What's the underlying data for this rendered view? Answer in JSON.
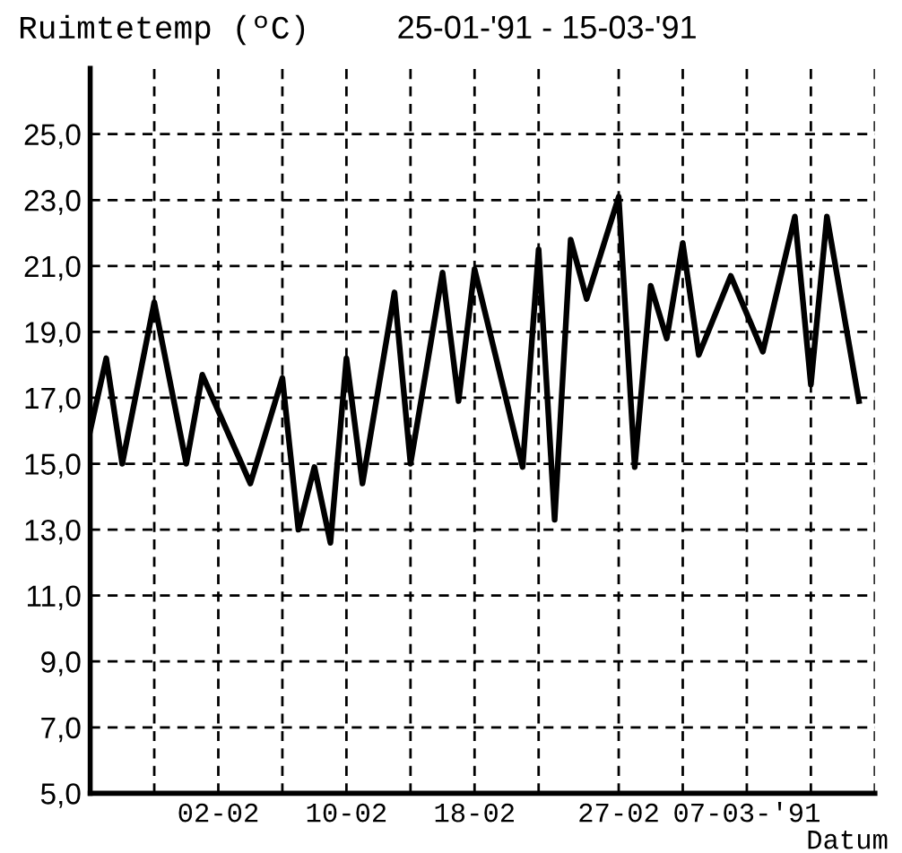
{
  "chart_data": {
    "type": "line",
    "title": "25-01-'91 - 15-03-'91",
    "ylabel": "Ruimtetemp (ºC)",
    "xlabel": "Datum",
    "x": [
      "1991-01-25",
      "1991-01-26",
      "1991-01-27",
      "1991-01-29",
      "1991-01-31",
      "1991-02-01",
      "1991-02-04",
      "1991-02-06",
      "1991-02-07",
      "1991-02-08",
      "1991-02-09",
      "1991-02-10",
      "1991-02-11",
      "1991-02-13",
      "1991-02-14",
      "1991-02-16",
      "1991-02-17",
      "1991-02-18",
      "1991-02-21",
      "1991-02-22",
      "1991-02-23",
      "1991-02-24",
      "1991-02-25",
      "1991-02-27",
      "1991-02-28",
      "1991-03-01",
      "1991-03-02",
      "1991-03-03",
      "1991-03-04",
      "1991-03-06",
      "1991-03-08",
      "1991-03-10",
      "1991-03-11",
      "1991-03-12",
      "1991-03-14"
    ],
    "series": [
      {
        "color": "#000000",
        "values": [
          16.0,
          18.2,
          15.0,
          19.9,
          15.0,
          17.7,
          14.4,
          17.6,
          13.0,
          14.9,
          12.6,
          18.2,
          14.4,
          20.2,
          15.0,
          20.8,
          16.9,
          20.9,
          14.9,
          21.5,
          13.3,
          21.8,
          20.0,
          23.1,
          14.9,
          20.4,
          18.8,
          21.7,
          18.3,
          20.7,
          18.4,
          22.5,
          17.4,
          22.5,
          16.9
        ]
      }
    ],
    "xlim": [
      "1991-01-25",
      "1991-03-15"
    ],
    "xticks": [
      {
        "value": "1991-01-29",
        "label": null
      },
      {
        "value": "1991-02-02",
        "label": "02-02"
      },
      {
        "value": "1991-02-06",
        "label": null
      },
      {
        "value": "1991-02-10",
        "label": "10-02"
      },
      {
        "value": "1991-02-14",
        "label": null
      },
      {
        "value": "1991-02-18",
        "label": "18-02"
      },
      {
        "value": "1991-02-22",
        "label": null
      },
      {
        "value": "1991-02-27",
        "label": "27-02"
      },
      {
        "value": "1991-03-03",
        "label": null
      },
      {
        "value": "1991-03-07",
        "label": "07-03-'91"
      },
      {
        "value": "1991-03-11",
        "label": null
      },
      {
        "value": "1991-03-15",
        "label": null
      }
    ],
    "ylim": [
      5,
      27
    ],
    "yticks": [
      {
        "value": 5,
        "label": "5,0"
      },
      {
        "value": 7,
        "label": "7,0"
      },
      {
        "value": 9,
        "label": "9,0"
      },
      {
        "value": 11,
        "label": "11,0"
      },
      {
        "value": 13,
        "label": "13,0"
      },
      {
        "value": 15,
        "label": "15,0"
      },
      {
        "value": 17,
        "label": "17,0"
      },
      {
        "value": 19,
        "label": "19,0"
      },
      {
        "value": 21,
        "label": "21,0"
      },
      {
        "value": 23,
        "label": "23,0"
      },
      {
        "value": 25,
        "label": "25,0"
      }
    ],
    "grid": true,
    "marker": "none",
    "line_style": "solid",
    "legend": false
  }
}
